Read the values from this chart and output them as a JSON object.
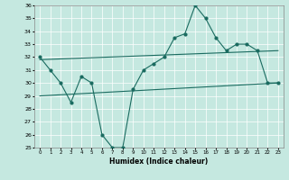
{
  "xlabel": "Humidex (Indice chaleur)",
  "xmin": -0.5,
  "xmax": 23.5,
  "ymin": 25,
  "ymax": 36,
  "yticks": [
    25,
    26,
    27,
    28,
    29,
    30,
    31,
    32,
    33,
    34,
    35,
    36
  ],
  "xticks": [
    0,
    1,
    2,
    3,
    4,
    5,
    6,
    7,
    8,
    9,
    10,
    11,
    12,
    13,
    14,
    15,
    16,
    17,
    18,
    19,
    20,
    21,
    22,
    23
  ],
  "bg_color": "#c5e8e0",
  "grid_color": "#ffffff",
  "line_color": "#1a6b60",
  "line1": [
    32,
    31,
    30,
    28.5,
    30.5,
    30.0,
    26,
    25,
    25,
    29.5,
    31,
    31.5,
    32,
    33.5,
    33.8,
    36,
    35,
    33.5,
    32.5,
    33,
    33,
    32.5,
    30,
    30
  ],
  "line2_x": [
    0,
    23
  ],
  "line2_y": [
    31.8,
    32.5
  ],
  "line3_x": [
    0,
    23
  ],
  "line3_y": [
    29.0,
    30.0
  ]
}
